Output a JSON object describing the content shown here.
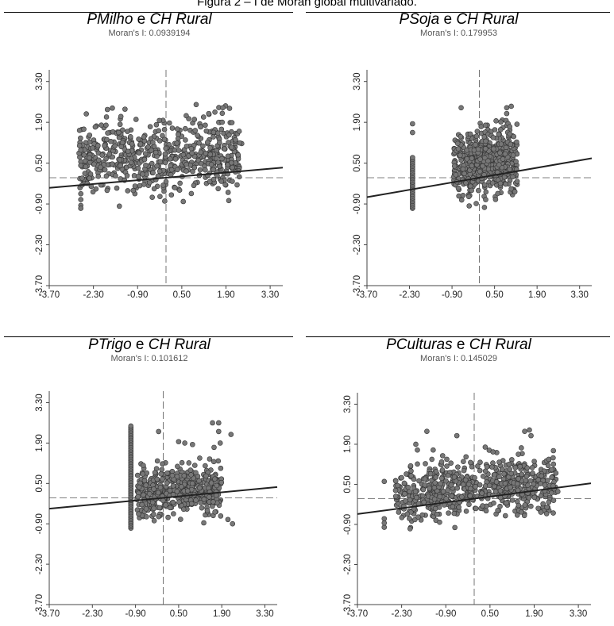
{
  "figure_title": "Figura 2 – I de Moran global multivariado.",
  "chart_data": [
    {
      "type": "scatter",
      "title_parts": [
        {
          "text": "PMilho",
          "italic": true
        },
        {
          "text": " e ",
          "italic": false
        },
        {
          "text": "CH Rural",
          "italic": true
        }
      ],
      "subtitle": "Moran's I: 0.0939194",
      "xlim": [
        -3.7,
        3.7
      ],
      "ylim": [
        -3.7,
        3.7
      ],
      "xticks": [
        "-3.70",
        "-2.30",
        "-0.90",
        "0.50",
        "1.90",
        "3.30"
      ],
      "yticks": [
        "-3.70",
        "-2.30",
        "-0.90",
        "0.50",
        "1.90",
        "3.30"
      ],
      "slope": 0.0939194,
      "x_center": 0.0,
      "y_center": 0.0,
      "x_range": [
        -2.8,
        2.4
      ],
      "y_range": [
        -1.1,
        2.6
      ],
      "points": [
        [
          -1.3,
          2.35
        ],
        [
          1.55,
          2.25
        ],
        [
          1.8,
          2.4
        ],
        [
          -0.95,
          2.0
        ],
        [
          0.9,
          2.0
        ],
        [
          -1.9,
          1.8
        ],
        [
          -1.5,
          1.55
        ],
        [
          -0.5,
          1.75
        ],
        [
          1.5,
          1.4
        ],
        [
          -2.7,
          0.95
        ],
        [
          -2.7,
          0.55
        ],
        [
          -2.7,
          0.42
        ],
        [
          -2.7,
          -0.55
        ],
        [
          -2.7,
          -0.75
        ],
        [
          -2.7,
          -0.95
        ],
        [
          -2.7,
          -1.05
        ],
        [
          2.2,
          0.2
        ],
        [
          2.1,
          0.35
        ],
        [
          -0.7,
          1.4
        ],
        [
          0.2,
          1.7
        ]
      ],
      "cloud_count": 620,
      "colors": {
        "point": "#777777",
        "point_edge": "#333333",
        "line": "#222222"
      }
    },
    {
      "type": "scatter",
      "title_parts": [
        {
          "text": "PSoja",
          "italic": true
        },
        {
          "text": " e ",
          "italic": false
        },
        {
          "text": "CH Rural",
          "italic": true
        }
      ],
      "subtitle": "Moran's I: 0.179953",
      "xlim": [
        -3.7,
        3.7
      ],
      "ylim": [
        -3.7,
        3.7
      ],
      "xticks": [
        "-3.70",
        "-2.30",
        "-0.90",
        "0.50",
        "1.90",
        "3.30"
      ],
      "yticks": [
        "-3.70",
        "-2.30",
        "-0.90",
        "0.50",
        "1.90",
        "3.30"
      ],
      "slope": 0.179953,
      "x_center": 0.0,
      "y_center": 0.0,
      "x_range": [
        -0.85,
        1.25
      ],
      "y_range": [
        -1.1,
        2.1
      ],
      "stack_x": -2.2,
      "stack_range": [
        -1.05,
        0.75
      ],
      "points": [
        [
          -0.6,
          2.4
        ],
        [
          0.9,
          2.4
        ],
        [
          1.05,
          2.45
        ],
        [
          -2.2,
          1.85
        ],
        [
          -2.2,
          1.55
        ],
        [
          0.9,
          2.2
        ],
        [
          0.55,
          1.95
        ],
        [
          1.0,
          1.75
        ],
        [
          0.2,
          1.8
        ],
        [
          -0.3,
          1.5
        ],
        [
          1.0,
          1.5
        ],
        [
          0.7,
          1.65
        ]
      ],
      "cloud_count": 520,
      "colors": {
        "point": "#777777",
        "point_edge": "#333333",
        "line": "#222222"
      }
    },
    {
      "type": "scatter",
      "title_parts": [
        {
          "text": "PTrigo",
          "italic": true
        },
        {
          "text": " e ",
          "italic": false
        },
        {
          "text": "CH Rural",
          "italic": true
        }
      ],
      "subtitle": "Moran's I: 0.101612",
      "xlim": [
        -3.7,
        3.7
      ],
      "ylim": [
        -3.7,
        3.7
      ],
      "xticks": [
        "-3.70",
        "-2.30",
        "-0.90",
        "0.50",
        "1.90",
        "3.30"
      ],
      "yticks": [
        "-3.70",
        "-2.30",
        "-0.90",
        "0.50",
        "1.90",
        "3.30"
      ],
      "slope": 0.101612,
      "x_center": 0.0,
      "y_center": 0.0,
      "x_range": [
        -0.85,
        1.9
      ],
      "y_range": [
        -1.05,
        1.5
      ],
      "stack_x": -1.05,
      "stack_range": [
        -1.05,
        2.5
      ],
      "points": [
        [
          1.6,
          2.6
        ],
        [
          1.8,
          2.6
        ],
        [
          1.8,
          2.3
        ],
        [
          2.2,
          2.2
        ],
        [
          -0.15,
          2.3
        ],
        [
          0.5,
          1.95
        ],
        [
          0.7,
          1.9
        ],
        [
          0.95,
          1.85
        ],
        [
          1.65,
          1.75
        ],
        [
          1.85,
          1.9
        ],
        [
          2.25,
          -0.9
        ],
        [
          2.1,
          -0.75
        ]
      ],
      "cloud_count": 520,
      "colors": {
        "point": "#777777",
        "point_edge": "#333333",
        "line": "#222222"
      }
    },
    {
      "type": "scatter",
      "title_parts": [
        {
          "text": "PCulturas",
          "italic": true
        },
        {
          "text": " e ",
          "italic": false
        },
        {
          "text": "CH Rural",
          "italic": true
        }
      ],
      "subtitle": "Moran's I: 0.145029",
      "xlim": [
        -3.7,
        3.7
      ],
      "ylim": [
        -3.7,
        3.7
      ],
      "xticks": [
        "-3.70",
        "-2.30",
        "-0.90",
        "0.50",
        "1.90",
        "3.30"
      ],
      "yticks": [
        "-3.70",
        "-2.30",
        "-0.90",
        "0.50",
        "1.90",
        "3.30"
      ],
      "slope": 0.145029,
      "x_center": 0.0,
      "y_center": 0.0,
      "x_range": [
        -2.5,
        2.6
      ],
      "y_range": [
        -1.1,
        1.8
      ],
      "points": [
        [
          -1.5,
          2.35
        ],
        [
          -0.55,
          2.2
        ],
        [
          1.6,
          2.35
        ],
        [
          1.75,
          2.4
        ],
        [
          1.8,
          2.2
        ],
        [
          -1.85,
          1.9
        ],
        [
          -1.8,
          1.7
        ],
        [
          -1.3,
          1.7
        ],
        [
          1.4,
          1.55
        ],
        [
          -2.85,
          0.6
        ],
        [
          -2.85,
          -0.7
        ],
        [
          -2.85,
          -1.0
        ],
        [
          -2.85,
          -0.85
        ],
        [
          2.65,
          0.25
        ],
        [
          -1.0,
          1.5
        ],
        [
          0.35,
          1.8
        ]
      ],
      "cloud_count": 640,
      "colors": {
        "point": "#777777",
        "point_edge": "#333333",
        "line": "#222222"
      }
    }
  ]
}
